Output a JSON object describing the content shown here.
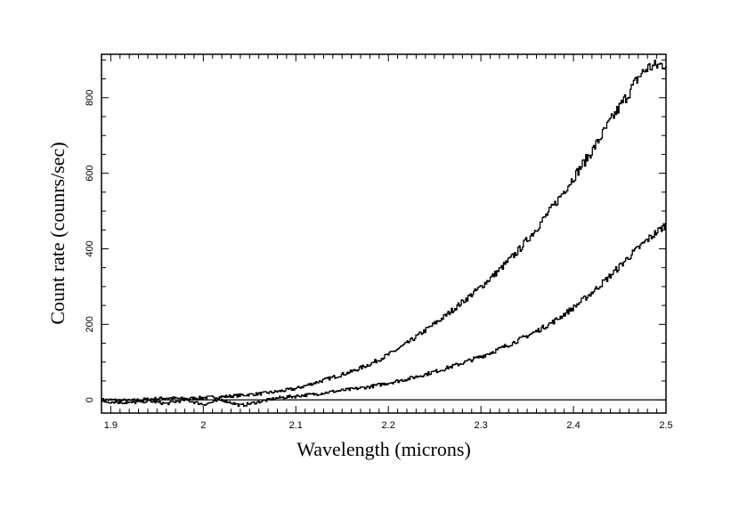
{
  "chart_data": {
    "type": "line",
    "title": "",
    "xlabel": "Wavelength (microns)",
    "ylabel": "Count rate (counrs/sec)",
    "xlim": [
      1.89,
      2.5
    ],
    "ylim": [
      -35,
      915
    ],
    "x_ticks": [
      {
        "value": 1.9,
        "label": "1.9"
      },
      {
        "value": 2.0,
        "label": "2"
      },
      {
        "value": 2.1,
        "label": "2.1"
      },
      {
        "value": 2.2,
        "label": "2.2"
      },
      {
        "value": 2.3,
        "label": "2.3"
      },
      {
        "value": 2.4,
        "label": "2.4"
      },
      {
        "value": 2.5,
        "label": "2.5"
      }
    ],
    "y_ticks": [
      {
        "value": 0,
        "label": "0"
      },
      {
        "value": 200,
        "label": "200"
      },
      {
        "value": 400,
        "label": "400"
      },
      {
        "value": 600,
        "label": "600"
      },
      {
        "value": 800,
        "label": "800"
      }
    ],
    "zero_line": true,
    "grid": false,
    "series": [
      {
        "style": "step",
        "x": [
          1.89,
          1.9,
          1.92,
          1.94,
          1.96,
          1.98,
          2.0,
          2.02,
          2.04,
          2.06,
          2.08,
          2.1,
          2.12,
          2.14,
          2.16,
          2.18,
          2.2,
          2.22,
          2.24,
          2.26,
          2.28,
          2.3,
          2.32,
          2.34,
          2.36,
          2.38,
          2.4,
          2.42,
          2.44,
          2.46,
          2.47,
          2.48,
          2.49,
          2.5
        ],
        "y": [
          0,
          0,
          -2,
          2,
          5,
          3,
          6,
          8,
          12,
          16,
          22,
          30,
          45,
          60,
          75,
          95,
          120,
          150,
          185,
          220,
          260,
          300,
          345,
          395,
          455,
          520,
          590,
          660,
          740,
          815,
          855,
          880,
          885,
          890
        ]
      },
      {
        "style": "step",
        "x": [
          1.89,
          1.9,
          1.92,
          1.94,
          1.96,
          1.98,
          2.0,
          2.02,
          2.04,
          2.06,
          2.08,
          2.1,
          2.12,
          2.14,
          2.16,
          2.18,
          2.2,
          2.22,
          2.24,
          2.26,
          2.28,
          2.3,
          2.32,
          2.34,
          2.36,
          2.38,
          2.4,
          2.42,
          2.44,
          2.46,
          2.48,
          2.5
        ],
        "y": [
          -5,
          -5,
          -8,
          -3,
          -10,
          0,
          -12,
          0,
          -15,
          -5,
          5,
          10,
          15,
          22,
          28,
          35,
          45,
          55,
          68,
          82,
          98,
          115,
          135,
          158,
          182,
          210,
          245,
          285,
          330,
          380,
          425,
          465
        ]
      }
    ]
  }
}
